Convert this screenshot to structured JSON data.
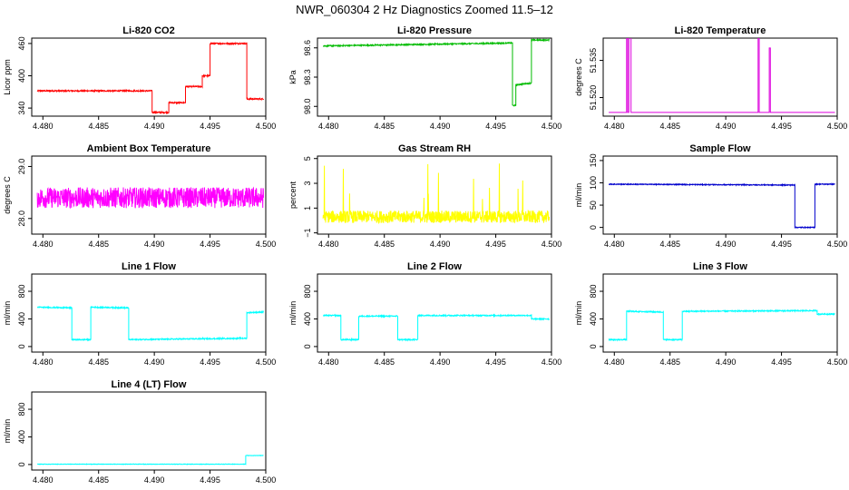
{
  "title": "NWR_060304  2 Hz Diagnostics Zoomed 11.5–12",
  "chart_data": [
    {
      "type": "line",
      "title": "Li-820 CO2",
      "ylabel": "Licor ppm",
      "xlim": [
        4.479,
        4.5
      ],
      "ylim": [
        325,
        470
      ],
      "xticks": [
        4.48,
        4.485,
        4.49,
        4.495,
        4.5
      ],
      "xtick_labels": [
        "4.480",
        "4.485",
        "4.490",
        "4.495",
        "4.500"
      ],
      "yticks": [
        340,
        400,
        460
      ],
      "ytick_labels": [
        "340",
        "400",
        "460"
      ],
      "color": "#ff0000",
      "noise": 1.2,
      "series": [
        {
          "x": [
            4.4795,
            4.4898,
            4.4898,
            4.4913,
            4.4913,
            4.4928,
            4.4928,
            4.4943,
            4.4943,
            4.495,
            4.495,
            4.4983,
            4.4983,
            4.4998
          ],
          "y": [
            372,
            372,
            332,
            332,
            350,
            350,
            380,
            380,
            400,
            400,
            460,
            460,
            357,
            357
          ]
        }
      ]
    },
    {
      "type": "line",
      "title": "Li-820 Pressure",
      "ylabel": "kPa",
      "xlim": [
        4.479,
        4.5
      ],
      "ylim": [
        97.9,
        98.7
      ],
      "xticks": [
        4.48,
        4.485,
        4.49,
        4.495,
        4.5
      ],
      "xtick_labels": [
        "4.480",
        "4.485",
        "4.490",
        "4.495",
        "4.500"
      ],
      "yticks": [
        98.0,
        98.3,
        98.6
      ],
      "ytick_labels": [
        "98.0",
        "98.3",
        "98.6"
      ],
      "color": "#00bb00",
      "noise": 0.006,
      "series": [
        {
          "x": [
            4.4795,
            4.4965,
            4.4965,
            4.4968,
            4.4968,
            4.4982,
            4.4982,
            4.4998
          ],
          "y": [
            98.62,
            98.65,
            98.01,
            98.01,
            98.22,
            98.24,
            98.68,
            98.68
          ]
        }
      ]
    },
    {
      "type": "line",
      "title": "Li-820 Temperature",
      "ylabel": "degrees C",
      "xlim": [
        4.479,
        4.5
      ],
      "ylim": [
        51.5125,
        51.544
      ],
      "xticks": [
        4.48,
        4.485,
        4.49,
        4.495,
        4.5
      ],
      "xtick_labels": [
        "4.480",
        "4.485",
        "4.490",
        "4.495",
        "4.500"
      ],
      "yticks": [
        51.52,
        51.535
      ],
      "ytick_labels": [
        "51.520",
        "51.535"
      ],
      "color": "#dd00dd",
      "noise": 0,
      "series": [
        {
          "x": [
            4.4795,
            4.4811,
            4.4811,
            4.4812,
            4.4812,
            4.4813,
            4.4813,
            4.4815,
            4.4815,
            4.4816,
            4.4816,
            4.4929,
            4.4929,
            4.493,
            4.493,
            4.4939,
            4.4939,
            4.494,
            4.494,
            4.4998
          ],
          "y": [
            51.514,
            51.514,
            51.545,
            51.545,
            51.514,
            51.514,
            51.545,
            51.545,
            51.514,
            51.514,
            51.514,
            51.514,
            51.545,
            51.545,
            51.514,
            51.514,
            51.54,
            51.54,
            51.514,
            51.514
          ]
        }
      ]
    },
    {
      "type": "line",
      "title": "Ambient Box Temperature",
      "ylabel": "degrees C",
      "xlim": [
        4.479,
        4.5
      ],
      "ylim": [
        27.7,
        29.2
      ],
      "xticks": [
        4.48,
        4.485,
        4.49,
        4.495,
        4.5
      ],
      "xtick_labels": [
        "4.480",
        "4.485",
        "4.490",
        "4.495",
        "4.500"
      ],
      "yticks": [
        28.0,
        29.0
      ],
      "ytick_labels": [
        "28.0",
        "29.0"
      ],
      "color": "#ff00ff",
      "noise": 0.2,
      "series": [
        {
          "x": [
            4.4795,
            4.4998
          ],
          "y": [
            28.4,
            28.4
          ]
        }
      ]
    },
    {
      "type": "line",
      "title": "Gas Stream RH",
      "ylabel": "percent",
      "xlim": [
        4.479,
        4.5
      ],
      "ylim": [
        -1.1,
        5.2
      ],
      "xticks": [
        4.48,
        4.485,
        4.49,
        4.495,
        4.5
      ],
      "xtick_labels": [
        "4.480",
        "4.485",
        "4.490",
        "4.495",
        "4.500"
      ],
      "yticks": [
        -1,
        1,
        3,
        5
      ],
      "ytick_labels": [
        "−1",
        "1",
        "3",
        "5"
      ],
      "color": "#ffff00",
      "noise": 0.5,
      "series": [
        {
          "x": [
            4.4795,
            4.4998
          ],
          "y": [
            0.3,
            0.3
          ]
        }
      ]
    },
    {
      "type": "line",
      "title": "Sample Flow",
      "ylabel": "ml/min",
      "xlim": [
        4.479,
        4.5
      ],
      "ylim": [
        -15,
        160
      ],
      "xticks": [
        4.48,
        4.485,
        4.49,
        4.495,
        4.5
      ],
      "xtick_labels": [
        "4.480",
        "4.485",
        "4.490",
        "4.495",
        "4.500"
      ],
      "yticks": [
        0,
        50,
        100,
        150
      ],
      "ytick_labels": [
        "0",
        "50",
        "100",
        "150"
      ],
      "color": "#0000cc",
      "noise": 1,
      "series": [
        {
          "x": [
            4.4795,
            4.4962,
            4.4962,
            4.498,
            4.498,
            4.4998
          ],
          "y": [
            97,
            95,
            0,
            0,
            97,
            97
          ]
        }
      ]
    },
    {
      "type": "line",
      "title": "Line 1 Flow",
      "ylabel": "ml/min",
      "xlim": [
        4.479,
        4.5
      ],
      "ylim": [
        -80,
        1050
      ],
      "xticks": [
        4.48,
        4.485,
        4.49,
        4.495,
        4.5
      ],
      "xtick_labels": [
        "4.480",
        "4.485",
        "4.490",
        "4.495",
        "4.500"
      ],
      "yticks": [
        0,
        400,
        800
      ],
      "ytick_labels": [
        "0",
        "400",
        "800"
      ],
      "color": "#00ffff",
      "noise": 8,
      "series": [
        {
          "x": [
            4.4795,
            4.4826,
            4.4826,
            4.4843,
            4.4843,
            4.4877,
            4.4877,
            4.4983,
            4.4983,
            4.4998
          ],
          "y": [
            570,
            560,
            100,
            100,
            570,
            560,
            100,
            120,
            490,
            500
          ]
        }
      ]
    },
    {
      "type": "line",
      "title": "Line 2 Flow",
      "ylabel": "ml/min",
      "xlim": [
        4.479,
        4.5
      ],
      "ylim": [
        -80,
        1050
      ],
      "xticks": [
        4.48,
        4.485,
        4.49,
        4.495,
        4.5
      ],
      "xtick_labels": [
        "4.480",
        "4.485",
        "4.490",
        "4.495",
        "4.500"
      ],
      "yticks": [
        0,
        400,
        800
      ],
      "ytick_labels": [
        "0",
        "400",
        "800"
      ],
      "color": "#00ffff",
      "noise": 8,
      "series": [
        {
          "x": [
            4.4795,
            4.4811,
            4.4811,
            4.4827,
            4.4827,
            4.4862,
            4.4862,
            4.488,
            4.488,
            4.4982,
            4.4982,
            4.4998
          ],
          "y": [
            450,
            450,
            100,
            100,
            440,
            440,
            100,
            100,
            450,
            450,
            400,
            400
          ]
        }
      ]
    },
    {
      "type": "line",
      "title": "Line 3 Flow",
      "ylabel": "ml/min",
      "xlim": [
        4.479,
        4.5
      ],
      "ylim": [
        -80,
        1050
      ],
      "xticks": [
        4.48,
        4.485,
        4.49,
        4.495,
        4.5
      ],
      "xtick_labels": [
        "4.480",
        "4.485",
        "4.490",
        "4.495",
        "4.500"
      ],
      "yticks": [
        0,
        400,
        800
      ],
      "ytick_labels": [
        "0",
        "400",
        "800"
      ],
      "color": "#00ffff",
      "noise": 8,
      "series": [
        {
          "x": [
            4.4795,
            4.4811,
            4.4811,
            4.4844,
            4.4844,
            4.4861,
            4.4861,
            4.4982,
            4.4982,
            4.4998
          ],
          "y": [
            100,
            100,
            510,
            500,
            100,
            100,
            510,
            520,
            470,
            470
          ]
        }
      ]
    },
    {
      "type": "line",
      "title": "Line 4 (LT) Flow",
      "ylabel": "ml/min",
      "xlim": [
        4.479,
        4.5
      ],
      "ylim": [
        -80,
        1050
      ],
      "xticks": [
        4.48,
        4.485,
        4.49,
        4.495,
        4.5
      ],
      "xtick_labels": [
        "4.480",
        "4.485",
        "4.490",
        "4.495",
        "4.500"
      ],
      "yticks": [
        0,
        400,
        800
      ],
      "ytick_labels": [
        "0",
        "400",
        "800"
      ],
      "color": "#00ffff",
      "noise": 3,
      "series": [
        {
          "x": [
            4.4795,
            4.4982,
            4.4982,
            4.4998
          ],
          "y": [
            5,
            5,
            130,
            130
          ]
        }
      ]
    }
  ]
}
